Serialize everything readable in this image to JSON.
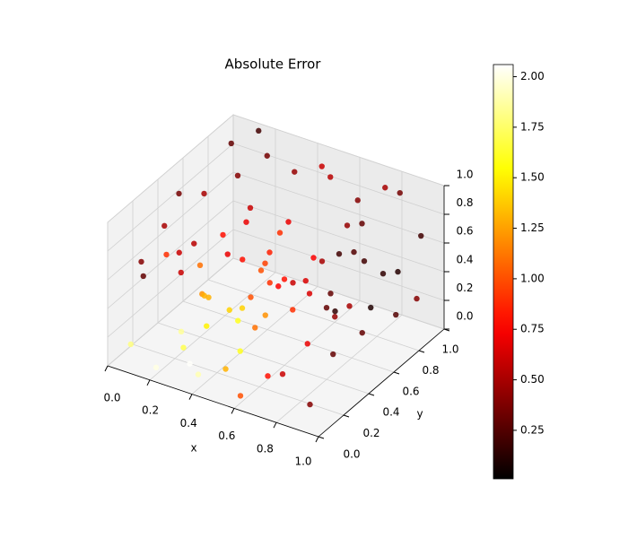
{
  "chart_data": {
    "type": "scatter3d",
    "title": "Absolute Error",
    "xlabel": "x",
    "ylabel": "y",
    "xlim": [
      0,
      1
    ],
    "ylim": [
      0,
      1
    ],
    "zlim": [
      0,
      1
    ],
    "xticks": [
      {
        "value": 0,
        "label": "0.0"
      },
      0.2,
      0.4,
      0.6,
      0.8,
      {
        "value": 1,
        "label": "1.0"
      }
    ],
    "yticks": [
      {
        "value": 0,
        "label": "0.0"
      },
      0.2,
      0.4,
      0.6,
      0.8,
      {
        "value": 1,
        "label": "1.0"
      }
    ],
    "zticks": [
      {
        "value": 0,
        "label": "0.0"
      },
      0.2,
      0.4,
      0.6,
      0.8,
      {
        "value": 1,
        "label": "1.0"
      }
    ],
    "colormap": "hot",
    "clim": [
      0.01,
      2.06
    ],
    "cticks": [
      0.25,
      {
        "value": 0.5,
        "label": "0.50"
      },
      0.75,
      {
        "value": 1,
        "label": "1.00"
      },
      1.25,
      {
        "value": 1.5,
        "label": "1.50"
      },
      1.75,
      {
        "value": 2,
        "label": "2.00"
      }
    ],
    "x": [
      0.05,
      0.2,
      0.3,
      0.4,
      0.35,
      0.5,
      0.6,
      0.7,
      0.8,
      0.9,
      0.95,
      0.1,
      0.2,
      0.3,
      0.4,
      0.5,
      0.6,
      0.7,
      0.8,
      0.9,
      0.95,
      0.1,
      0.2,
      0.3,
      0.4,
      0.5,
      0.6,
      0.7,
      0.8,
      0.9,
      0.95,
      0.05,
      0.15,
      0.25,
      0.35,
      0.45,
      0.55,
      0.65,
      0.75,
      0.85,
      0.05,
      0.1,
      0.15,
      0.25,
      0.35,
      0.45,
      0.55,
      0.65,
      0.75,
      0.85,
      0.05,
      0.15,
      0.25,
      0.35,
      0.45,
      0.55,
      0.65,
      0.75,
      0.85,
      0.95,
      0.2,
      0.3,
      0.45,
      0.55,
      0.25,
      0.4,
      0.6,
      0.7,
      0.8,
      0.9,
      0.1,
      0.2,
      0.3,
      0.5,
      0.6,
      0.7,
      0.8,
      0.9,
      0.1,
      0.5
    ],
    "y": [
      0.1,
      0.05,
      0.1,
      0.05,
      0.2,
      0.1,
      0.05,
      0.1,
      0.05,
      0.1,
      0.2,
      0.3,
      0.4,
      0.3,
      0.4,
      0.3,
      0.4,
      0.3,
      0.4,
      0.3,
      0.5,
      0.6,
      0.7,
      0.6,
      0.7,
      0.6,
      0.7,
      0.6,
      0.7,
      0.8,
      0.9,
      0.9,
      0.95,
      0.85,
      0.9,
      0.95,
      0.85,
      0.9,
      0.95,
      0.9,
      0.2,
      0.1,
      0.2,
      0.15,
      0.1,
      0.2,
      0.15,
      0.2,
      0.1,
      0.15,
      0.5,
      0.5,
      0.55,
      0.45,
      0.5,
      0.55,
      0.5,
      0.55,
      0.6,
      0.7,
      0.25,
      0.15,
      0.3,
      0.25,
      0.35,
      0.55,
      0.6,
      0.75,
      0.85,
      0.95,
      0.75,
      0.8,
      0.75,
      0.8,
      0.9,
      0.85,
      0.5,
      0.45,
      0.4,
      0.45
    ],
    "z": [
      0.1,
      0.05,
      0.2,
      0.1,
      0.3,
      0.15,
      0.05,
      0.2,
      0.3,
      0.1,
      0.4,
      0.6,
      0.5,
      0.4,
      0.3,
      0.5,
      0.6,
      0.7,
      0.5,
      0.6,
      0.5,
      0.8,
      0.9,
      0.7,
      0.6,
      0.8,
      0.5,
      0.4,
      0.6,
      0.5,
      0.7,
      0.9,
      1.0,
      0.95,
      0.85,
      0.9,
      0.95,
      0.8,
      0.9,
      0.95,
      0.5,
      0.7,
      0.9,
      0.8,
      0.95,
      0.85,
      0.9,
      0.75,
      0.85,
      0.9,
      0.3,
      0.2,
      0.1,
      0.15,
      0.2,
      0.25,
      0.1,
      0.3,
      0.2,
      0.3,
      0.15,
      0.05,
      0.1,
      0.35,
      0.35,
      0.45,
      0.35,
      0.2,
      0.4,
      0.2,
      0.4,
      0.6,
      0.3,
      0.4,
      0.6,
      0.7,
      0.8,
      0.9,
      0.95,
      0.7
    ],
    "values": [
      1.8,
      2.0,
      1.7,
      1.9,
      1.5,
      1.3,
      1.0,
      0.8,
      0.6,
      0.4,
      0.3,
      0.9,
      1.1,
      1.3,
      1.4,
      1.0,
      0.8,
      0.6,
      0.3,
      0.15,
      0.1,
      0.5,
      0.4,
      0.7,
      0.9,
      0.7,
      0.5,
      0.3,
      0.2,
      0.12,
      0.2,
      0.3,
      0.2,
      0.35,
      0.45,
      0.6,
      0.55,
      0.4,
      0.5,
      0.35,
      0.3,
      0.4,
      0.5,
      0.6,
      0.55,
      0.7,
      0.8,
      0.9,
      0.75,
      0.65,
      0.6,
      1.2,
      1.4,
      1.6,
      1.2,
      0.9,
      0.7,
      0.45,
      0.3,
      0.25,
      1.85,
      2.05,
      1.6,
      1.1,
      1.3,
      1.0,
      0.65,
      0.5,
      0.15,
      0.4,
      0.8,
      0.6,
      0.95,
      0.75,
      0.45,
      0.3,
      0.2,
      0.25,
      0.35,
      0.85
    ]
  }
}
